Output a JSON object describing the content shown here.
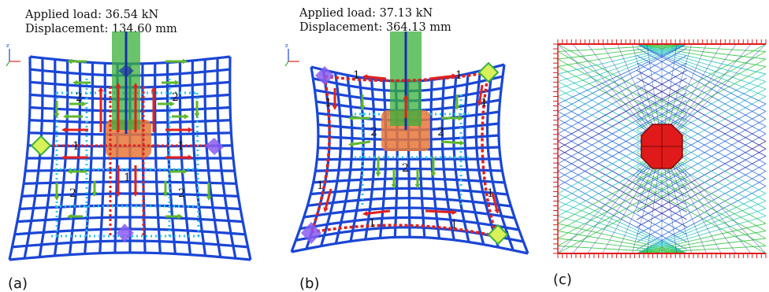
{
  "figure": {
    "panel_a": {
      "load_text": "Applied load: 36.54 kN",
      "displacement_text": "Displacement: 134.60 mm",
      "label": "(a)",
      "axis_label": "z",
      "path_labels": [
        "1",
        "1",
        "1",
        "2",
        "2",
        "2",
        "2"
      ]
    },
    "panel_b": {
      "load_text": "Applied load: 37.13 kN",
      "displacement_text": "Displacement: 364.13 mm",
      "label": "(b)",
      "axis_label": "z",
      "path_labels": [
        "1",
        "1",
        "1",
        "1",
        "1",
        "1",
        "1",
        "1",
        "2",
        "2",
        "2"
      ]
    },
    "panel_c": {
      "label": "(c)"
    }
  },
  "colors": {
    "mesh": "#1a46d6",
    "column": "#3ab03a",
    "column_core": "#1a2fa8",
    "patch": "#e8783a",
    "red_arrow": "#e0211d",
    "green_arrow": "#5fb82b",
    "cyan_dots": "#29c4e8",
    "support_yellow": "#d8f05a",
    "support_purple": "#8a5cf0",
    "node_red": "#e01a1a"
  }
}
